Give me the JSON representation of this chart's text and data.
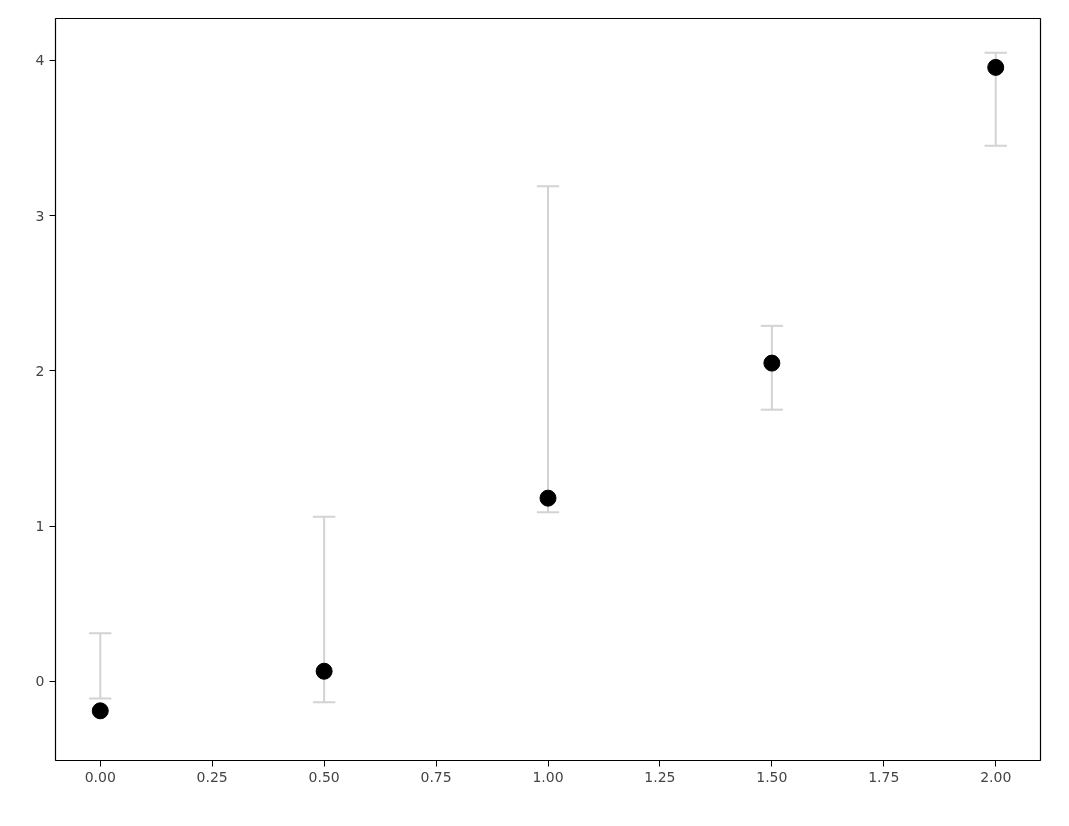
{
  "chart_data": {
    "type": "scatter",
    "x": [
      0,
      0.5,
      1,
      1.5,
      2
    ],
    "series": [
      {
        "color": "#000000",
        "values": [
          -0.19,
          0.065,
          1.18,
          2.05,
          3.955
        ],
        "errors": [
          [
            -0.11,
            0.31
          ],
          [
            -0.135,
            1.06
          ],
          [
            1.09,
            3.19
          ],
          [
            1.75,
            2.29
          ],
          [
            3.45,
            4.05
          ]
        ]
      }
    ],
    "xlim": [
      -0.1,
      2.1
    ],
    "ylim": [
      -0.51,
      4.27
    ],
    "xticks": [
      {
        "value": 0,
        "label": "0.00"
      },
      {
        "value": 0.25,
        "label": "0.25"
      },
      {
        "value": 0.5,
        "label": "0.50"
      },
      {
        "value": 0.75,
        "label": "0.75"
      },
      {
        "value": 1,
        "label": "1.00"
      },
      {
        "value": 1.25,
        "label": "1.25"
      },
      {
        "value": 1.5,
        "label": "1.50"
      },
      {
        "value": 1.75,
        "label": "1.75"
      },
      {
        "value": 2,
        "label": "2.00"
      }
    ],
    "yticks": [
      0,
      1,
      2,
      3,
      4
    ],
    "grid": false,
    "marker": "circle"
  }
}
